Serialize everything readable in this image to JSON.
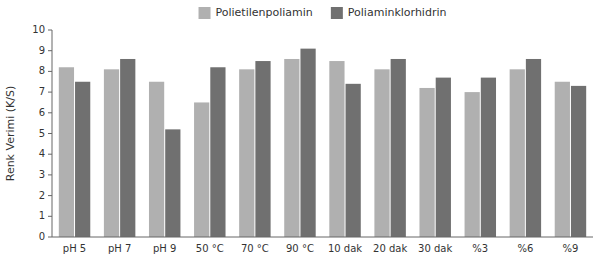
{
  "chart_data": {
    "type": "bar",
    "categories": [
      "pH 5",
      "pH 7",
      "pH 9",
      "50 °C",
      "70 °C",
      "90 °C",
      "10 dak",
      "20 dak",
      "30 dak",
      "%3",
      "%6",
      "%9"
    ],
    "series": [
      {
        "name": "Polietilenpoliamin",
        "color": "#b0b0b0",
        "values": [
          8.2,
          8.1,
          7.5,
          6.5,
          8.1,
          8.6,
          8.5,
          8.1,
          7.2,
          7.0,
          8.1,
          7.5
        ]
      },
      {
        "name": "Poliaminklorhidrin",
        "color": "#707070",
        "values": [
          7.5,
          8.6,
          5.2,
          8.2,
          8.5,
          9.1,
          7.4,
          8.6,
          7.7,
          7.7,
          8.6,
          7.3
        ]
      }
    ],
    "ylabel": "Renk Verimi (K/S)",
    "ylim": [
      0,
      10
    ],
    "yticks": [
      0,
      1,
      2,
      3,
      4,
      5,
      6,
      7,
      8,
      9,
      10
    ],
    "grid": false,
    "legend": "top"
  }
}
